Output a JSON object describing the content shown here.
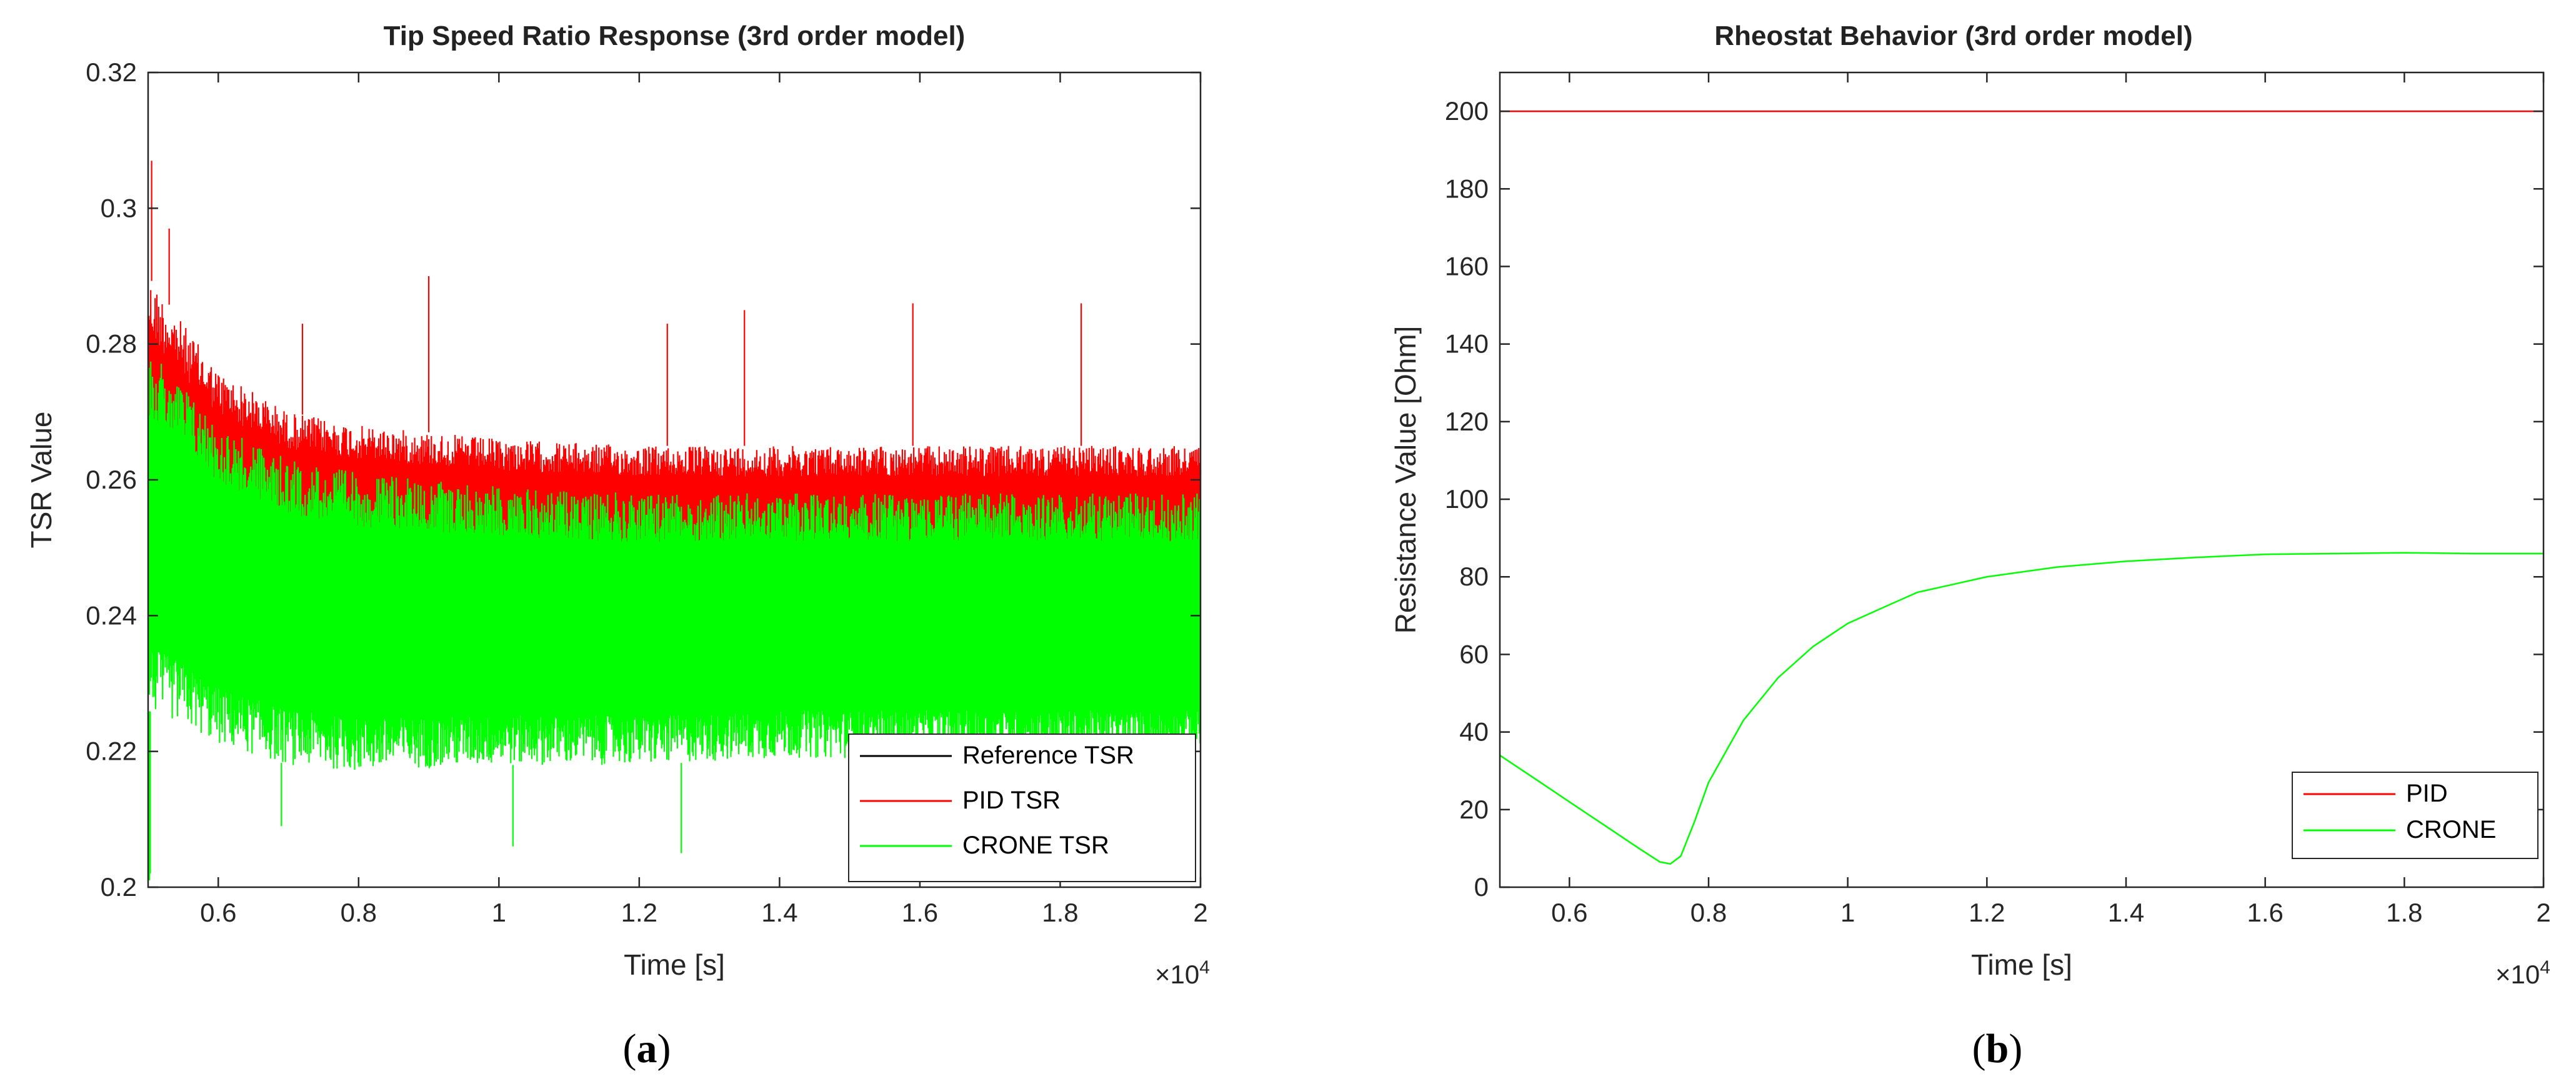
{
  "chart_data": [
    {
      "type": "line",
      "title": "Tip Speed Ratio Response (3rd order model)",
      "xlabel": "Time [s]",
      "ylabel": "TSR Value",
      "x_exponent_label": "×10",
      "x_exponent": "4",
      "caption_letter": "a",
      "xlim": [
        0.5,
        2.0
      ],
      "ylim": [
        0.2,
        0.32
      ],
      "xticks": [
        "0.6",
        "0.8",
        "1",
        "1.2",
        "1.4",
        "1.6",
        "1.8",
        "2"
      ],
      "yticks": [
        "0.2",
        "0.22",
        "0.24",
        "0.26",
        "0.28",
        "0.3",
        "0.32"
      ],
      "grid": false,
      "legend_position": "bottom-right",
      "series": [
        {
          "name": "Reference TSR",
          "color": "#000000",
          "x": [
            0.5,
            2.0
          ],
          "y": [
            0.24,
            0.24
          ]
        },
        {
          "name": "PID TSR",
          "color": "#ff0000",
          "style": "noisy-band",
          "x": [
            0.5,
            0.55,
            0.6,
            0.7,
            0.8,
            1.0,
            1.2,
            1.4,
            1.6,
            1.8,
            2.0
          ],
          "y_upper": [
            0.29,
            0.283,
            0.276,
            0.27,
            0.268,
            0.266,
            0.265,
            0.265,
            0.265,
            0.265,
            0.265
          ],
          "y_lower": [
            0.24,
            0.24,
            0.24,
            0.24,
            0.24,
            0.24,
            0.24,
            0.24,
            0.24,
            0.24,
            0.24
          ],
          "spikes": [
            [
              0.505,
              0.307
            ],
            [
              0.53,
              0.297
            ],
            [
              0.9,
              0.29
            ],
            [
              1.35,
              0.285
            ],
            [
              1.59,
              0.286
            ],
            [
              1.83,
              0.286
            ],
            [
              1.24,
              0.283
            ],
            [
              0.72,
              0.283
            ]
          ]
        },
        {
          "name": "CRONE TSR",
          "color": "#00ff00",
          "style": "noisy-band",
          "x": [
            0.5,
            0.55,
            0.6,
            0.7,
            0.8,
            1.0,
            1.2,
            1.4,
            1.6,
            1.8,
            2.0
          ],
          "y_upper": [
            0.279,
            0.274,
            0.268,
            0.263,
            0.261,
            0.259,
            0.258,
            0.258,
            0.258,
            0.258,
            0.258
          ],
          "y_lower": [
            0.226,
            0.224,
            0.221,
            0.218,
            0.217,
            0.218,
            0.218,
            0.219,
            0.219,
            0.219,
            0.219
          ],
          "spikes": [
            [
              0.502,
              0.201
            ],
            [
              0.503,
              0.202
            ],
            [
              1.02,
              0.206
            ],
            [
              1.26,
              0.205
            ],
            [
              0.69,
              0.209
            ],
            [
              1.98,
              0.211
            ]
          ]
        }
      ]
    },
    {
      "type": "line",
      "title": "Rheostat Behavior (3rd order model)",
      "xlabel": "Time [s]",
      "ylabel": "Resistance Value [Ohm]",
      "x_exponent_label": "×10",
      "x_exponent": "4",
      "caption_letter": "b",
      "xlim": [
        0.5,
        2.0
      ],
      "ylim": [
        0,
        210
      ],
      "xticks": [
        "0.6",
        "0.8",
        "1",
        "1.2",
        "1.4",
        "1.6",
        "1.8",
        "2"
      ],
      "yticks": [
        "0",
        "20",
        "40",
        "60",
        "80",
        "100",
        "120",
        "140",
        "160",
        "180",
        "200"
      ],
      "grid": false,
      "legend_position": "bottom-right",
      "series": [
        {
          "name": "PID",
          "color": "#ff0000",
          "x": [
            0.5,
            2.0
          ],
          "y": [
            200,
            200
          ]
        },
        {
          "name": "CRONE",
          "color": "#00ff00",
          "x": [
            0.5,
            0.55,
            0.6,
            0.65,
            0.7,
            0.73,
            0.745,
            0.76,
            0.78,
            0.8,
            0.85,
            0.9,
            0.95,
            1.0,
            1.05,
            1.1,
            1.15,
            1.2,
            1.3,
            1.4,
            1.5,
            1.6,
            1.7,
            1.8,
            1.9,
            2.0
          ],
          "y": [
            34,
            28,
            22,
            16,
            10,
            6.5,
            6,
            8,
            17,
            27,
            43,
            54,
            62,
            68,
            72,
            76,
            78,
            80,
            82.5,
            84,
            85,
            85.8,
            86,
            86.2,
            86,
            86
          ]
        }
      ]
    }
  ]
}
